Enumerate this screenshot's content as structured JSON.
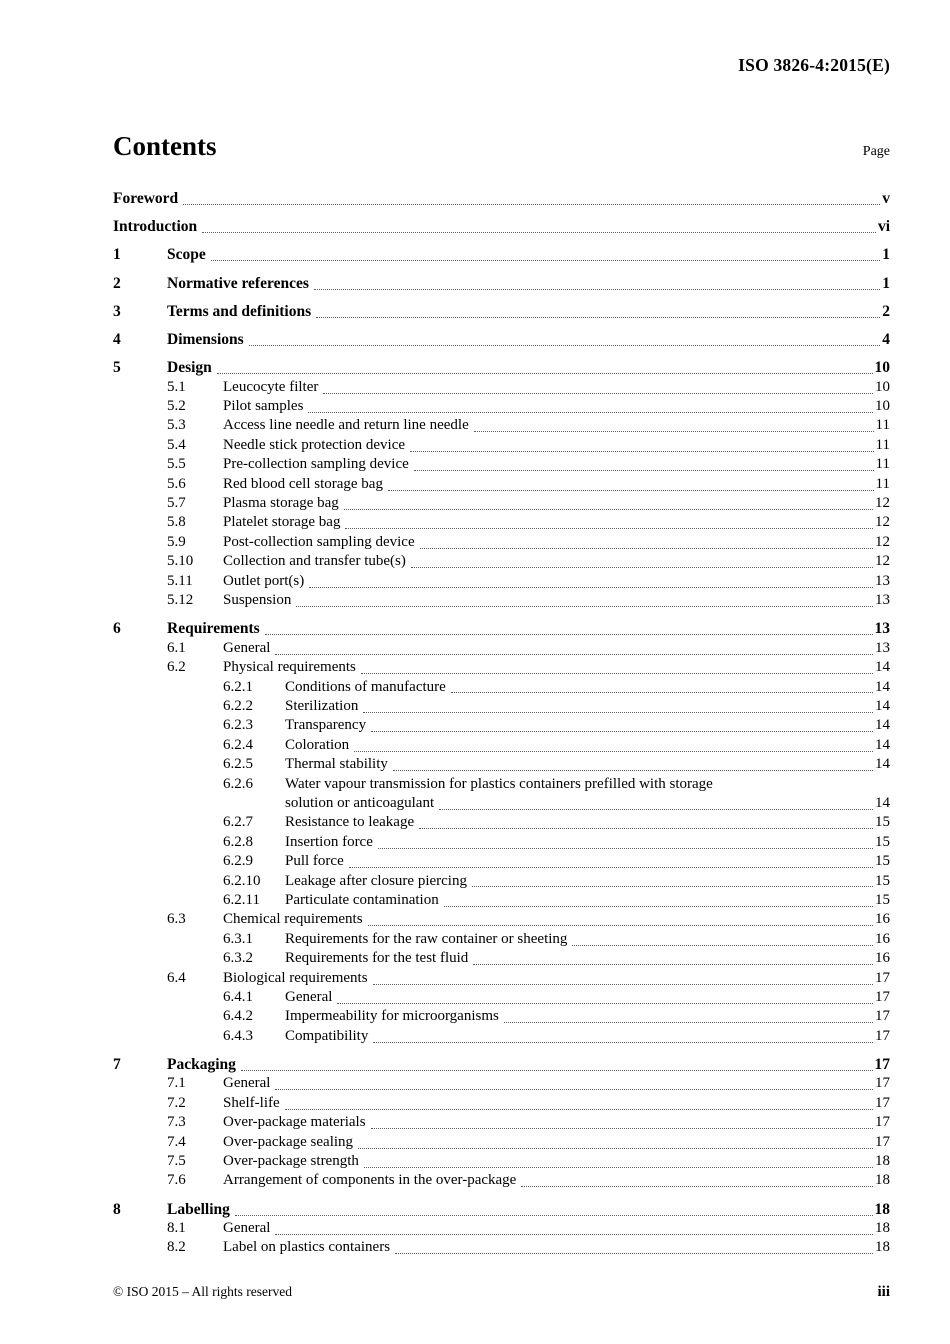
{
  "header": {
    "doc_code": "ISO 3826-4:2015(E)"
  },
  "contents_header": {
    "title": "Contents",
    "page_label": "Page"
  },
  "toc": {
    "entries": [
      {
        "level": 0,
        "num": "",
        "title": "Foreword",
        "page": "v",
        "bold": true,
        "spaced": true
      },
      {
        "level": 0,
        "num": "",
        "title": "Introduction",
        "page": "vi",
        "bold": true,
        "spaced": true
      },
      {
        "level": 1,
        "num": "1",
        "title": "Scope",
        "page": "1",
        "bold": true,
        "spaced": true
      },
      {
        "level": 1,
        "num": "2",
        "title": "Normative references",
        "page": "1",
        "bold": true,
        "spaced": true
      },
      {
        "level": 1,
        "num": "3",
        "title": "Terms and definitions",
        "page": "2",
        "bold": true,
        "spaced": true
      },
      {
        "level": 1,
        "num": "4",
        "title": "Dimensions",
        "page": "4",
        "bold": true,
        "spaced": true
      },
      {
        "level": 1,
        "num": "5",
        "title": "Design",
        "page": "10",
        "bold": true,
        "spaced": true
      },
      {
        "level": 2,
        "num": "5.1",
        "title": "Leucocyte filter",
        "page": "10"
      },
      {
        "level": 2,
        "num": "5.2",
        "title": "Pilot samples",
        "page": "10"
      },
      {
        "level": 2,
        "num": "5.3",
        "title": "Access line needle and return line needle",
        "page": "11"
      },
      {
        "level": 2,
        "num": "5.4",
        "title": "Needle stick protection device",
        "page": "11"
      },
      {
        "level": 2,
        "num": "5.5",
        "title": "Pre-collection sampling device",
        "page": "11"
      },
      {
        "level": 2,
        "num": "5.6",
        "title": "Red blood cell storage bag",
        "page": "11"
      },
      {
        "level": 2,
        "num": "5.7",
        "title": "Plasma storage bag",
        "page": "12"
      },
      {
        "level": 2,
        "num": "5.8",
        "title": "Platelet storage bag",
        "page": "12"
      },
      {
        "level": 2,
        "num": "5.9",
        "title": "Post-collection sampling device",
        "page": "12"
      },
      {
        "level": 2,
        "num": "5.10",
        "title": "Collection and transfer tube(s)",
        "page": "12"
      },
      {
        "level": 2,
        "num": "5.11",
        "title": "Outlet port(s)",
        "page": "13"
      },
      {
        "level": 2,
        "num": "5.12",
        "title": "Suspension",
        "page": "13"
      },
      {
        "level": 1,
        "num": "6",
        "title": "Requirements",
        "page": "13",
        "bold": true,
        "spaced": true
      },
      {
        "level": 2,
        "num": "6.1",
        "title": "General",
        "page": "13"
      },
      {
        "level": 2,
        "num": "6.2",
        "title": "Physical requirements",
        "page": "14"
      },
      {
        "level": 3,
        "num": "6.2.1",
        "title": "Conditions of manufacture",
        "page": "14"
      },
      {
        "level": 3,
        "num": "6.2.2",
        "title": "Sterilization",
        "page": "14"
      },
      {
        "level": 3,
        "num": "6.2.3",
        "title": "Transparency",
        "page": "14"
      },
      {
        "level": 3,
        "num": "6.2.4",
        "title": "Coloration",
        "page": "14"
      },
      {
        "level": 3,
        "num": "6.2.5",
        "title": "Thermal stability",
        "page": "14"
      },
      {
        "level": 3,
        "num": "6.2.6",
        "title": "Water vapour transmission for plastics containers prefilled with storage",
        "page": "",
        "wrap": true
      },
      {
        "level": 3,
        "num": "",
        "title": "solution or anticoagulant",
        "page": "14"
      },
      {
        "level": 3,
        "num": "6.2.7",
        "title": "Resistance to leakage",
        "page": "15"
      },
      {
        "level": 3,
        "num": "6.2.8",
        "title": "Insertion force",
        "page": "15"
      },
      {
        "level": 3,
        "num": "6.2.9",
        "title": "Pull force",
        "page": "15"
      },
      {
        "level": 3,
        "num": "6.2.10",
        "title": "Leakage after closure piercing",
        "page": "15"
      },
      {
        "level": 3,
        "num": "6.2.11",
        "title": "Particulate contamination",
        "page": "15"
      },
      {
        "level": 2,
        "num": "6.3",
        "title": "Chemical requirements",
        "page": "16"
      },
      {
        "level": 3,
        "num": "6.3.1",
        "title": "Requirements for the raw container or sheeting",
        "page": "16"
      },
      {
        "level": 3,
        "num": "6.3.2",
        "title": "Requirements for the test fluid",
        "page": "16"
      },
      {
        "level": 2,
        "num": "6.4",
        "title": "Biological requirements",
        "page": "17"
      },
      {
        "level": 3,
        "num": "6.4.1",
        "title": "General",
        "page": "17"
      },
      {
        "level": 3,
        "num": "6.4.2",
        "title": "Impermeability for microorganisms",
        "page": "17"
      },
      {
        "level": 3,
        "num": "6.4.3",
        "title": "Compatibility",
        "page": "17"
      },
      {
        "level": 1,
        "num": "7",
        "title": "Packaging",
        "page": "17",
        "bold": true,
        "spaced": true
      },
      {
        "level": 2,
        "num": "7.1",
        "title": "General",
        "page": "17"
      },
      {
        "level": 2,
        "num": "7.2",
        "title": "Shelf-life",
        "page": "17"
      },
      {
        "level": 2,
        "num": "7.3",
        "title": "Over-package materials",
        "page": "17"
      },
      {
        "level": 2,
        "num": "7.4",
        "title": "Over-package sealing",
        "page": "17"
      },
      {
        "level": 2,
        "num": "7.5",
        "title": "Over-package strength",
        "page": "18"
      },
      {
        "level": 2,
        "num": "7.6",
        "title": "Arrangement of components in the over-package",
        "page": "18"
      },
      {
        "level": 1,
        "num": "8",
        "title": "Labelling",
        "page": "18",
        "bold": true,
        "spaced": true
      },
      {
        "level": 2,
        "num": "8.1",
        "title": "General",
        "page": "18"
      },
      {
        "level": 2,
        "num": "8.2",
        "title": "Label on plastics containers",
        "page": "18"
      }
    ]
  },
  "footer": {
    "copyright": "© ISO 2015 – All rights reserved",
    "page_number": "iii"
  }
}
